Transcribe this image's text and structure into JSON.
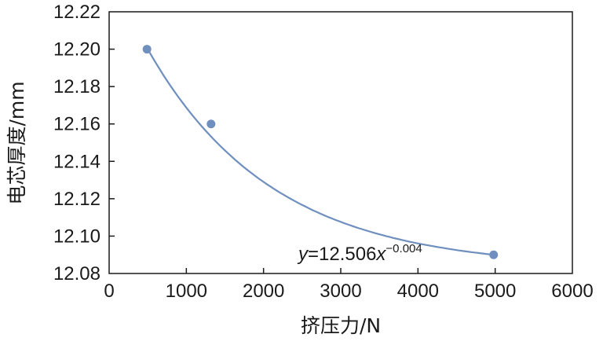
{
  "chart_data": {
    "type": "scatter",
    "xlabel": "挤压力/N",
    "ylabel": "电芯厚度/mm",
    "xlim": [
      0,
      6000
    ],
    "ylim": [
      12.08,
      12.22
    ],
    "x_ticks": [
      "0",
      "1000",
      "2000",
      "3000",
      "4000",
      "5000",
      "6000"
    ],
    "y_ticks": [
      "12.08",
      "12.10",
      "12.12",
      "12.14",
      "12.16",
      "12.18",
      "12.20",
      "12.22"
    ],
    "points": [
      {
        "x": 490,
        "y": 12.2
      },
      {
        "x": 1320,
        "y": 12.16
      },
      {
        "x": 4980,
        "y": 12.09
      }
    ],
    "fit": {
      "type": "power",
      "a": 12.506,
      "b": -0.004,
      "x_range": [
        500,
        4980
      ],
      "label_prefix": "y",
      "label_eq": "=12.506",
      "label_var": "x",
      "label_exp": "−0.004"
    },
    "grid": false,
    "colors": {
      "marker": "#6f8fbe",
      "line": "#6f8fbe",
      "axis": "#1a1a1a"
    }
  }
}
